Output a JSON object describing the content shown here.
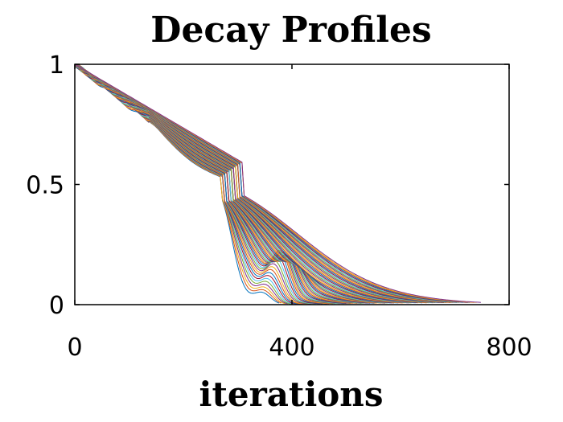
{
  "chart_data": {
    "type": "line",
    "title": "Decay Profiles",
    "xlabel": "iterations",
    "ylabel": "",
    "xlim": [
      0,
      800
    ],
    "ylim": [
      0,
      1
    ],
    "xticks": [
      0,
      400,
      800
    ],
    "xtick_labels": [
      "0",
      "400",
      "800"
    ],
    "yticks": [
      0,
      0.5,
      1
    ],
    "ytick_labels": [
      "0",
      "0.5",
      "1"
    ],
    "grid": false,
    "legend": "none",
    "series_family": {
      "count": 60,
      "description_of_curves": "many decaying curves from 1 toward 0",
      "start": {
        "x": 0,
        "y": 1.0
      },
      "earliest_drop_near_x": 310,
      "latest_end_x": 750,
      "knee_range_y": [
        0.55,
        0.6
      ],
      "rebound_bump_max_y": 0.18
    },
    "colors": [
      "#0072BD",
      "#D95319",
      "#EDB120",
      "#7E2F8E",
      "#77AC30",
      "#4DBEEE",
      "#A2142F"
    ]
  }
}
